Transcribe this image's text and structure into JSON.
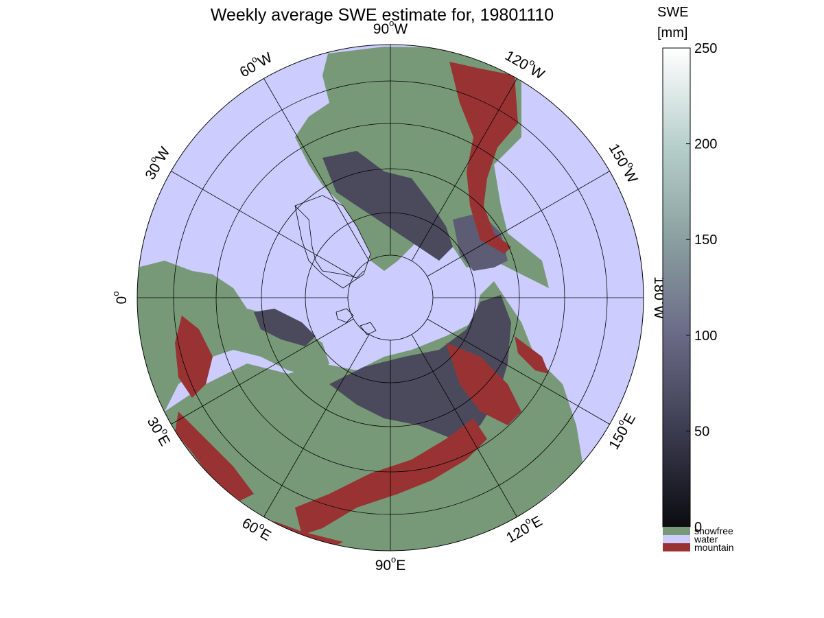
{
  "title": "Weekly average SWE estimate for, 19801110",
  "colorbar": {
    "label_line1": "SWE",
    "label_line2": "[mm]",
    "ticks": [
      "0",
      "50",
      "100",
      "150",
      "200",
      "250"
    ],
    "tick_values": [
      0,
      50,
      100,
      150,
      200,
      250
    ],
    "range": [
      0,
      250
    ],
    "gradient_stops": [
      "#0b0b10",
      "#3c3c50",
      "#6a6a86",
      "#8aa0a0",
      "#b8d0cc",
      "#ffffff"
    ],
    "categories": [
      {
        "label": "snowfree",
        "color": "#779977"
      },
      {
        "label": "water",
        "color": "#ccccff"
      },
      {
        "label": "mountain",
        "color": "#993333"
      }
    ]
  },
  "map": {
    "projection": "north polar stereographic",
    "longitude_labels": [
      {
        "deg": "90",
        "unit": "W",
        "text_angle": 0
      },
      {
        "deg": "60",
        "unit": "W",
        "text_angle": -30
      },
      {
        "deg": "30",
        "unit": "W",
        "text_angle": -60
      },
      {
        "deg": "0",
        "unit": "",
        "text_angle": -90
      },
      {
        "deg": "30",
        "unit": "E",
        "text_angle": 60
      },
      {
        "deg": "60",
        "unit": "E",
        "text_angle": 30
      },
      {
        "deg": "90",
        "unit": "E",
        "text_angle": 0
      },
      {
        "deg": "120",
        "unit": "E",
        "text_angle": -30
      },
      {
        "deg": "150",
        "unit": "E",
        "text_angle": -60
      },
      {
        "deg": "180",
        "unit": "W",
        "text_angle": 90
      },
      {
        "deg": "150",
        "unit": "W",
        "text_angle": 60
      },
      {
        "deg": "120",
        "unit": "W",
        "text_angle": 30
      }
    ],
    "colors": {
      "water": "#ccccff",
      "snowfree": "#779977",
      "mountain": "#993333",
      "snow_shallow": "#4a4a5c",
      "snow_deep": "#5c5c74"
    }
  }
}
